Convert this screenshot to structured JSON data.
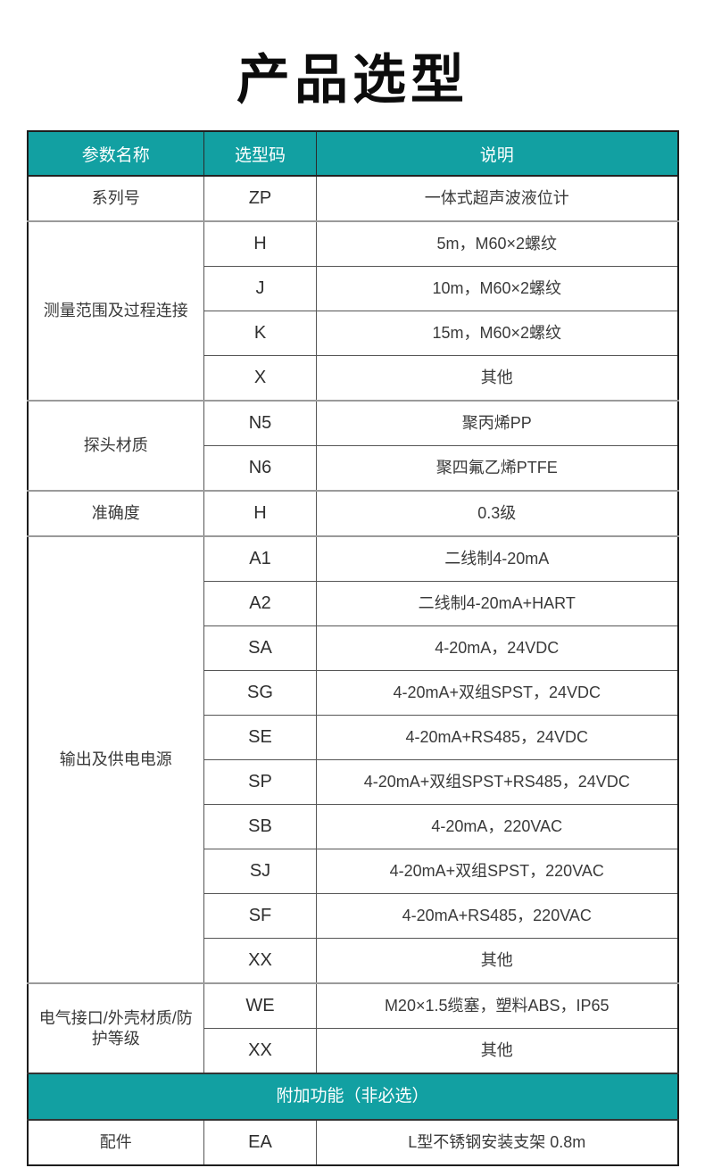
{
  "page": {
    "title": "产品选型"
  },
  "colors": {
    "accent_teal": "#12a0a2",
    "header_text": "#ffffff",
    "body_text": "#3a3a3a",
    "outer_border": "#1d1d1d"
  },
  "table": {
    "headers": [
      "参数名称",
      "选型码",
      "说明"
    ],
    "groups": [
      {
        "name": "系列号",
        "rows": [
          {
            "code": "ZP",
            "desc": "一体式超声波液位计"
          }
        ]
      },
      {
        "name": "测量范围及过程连接",
        "rows": [
          {
            "code": "H",
            "desc": "5m，M60×2螺纹"
          },
          {
            "code": "J",
            "desc": "10m，M60×2螺纹"
          },
          {
            "code": "K",
            "desc": "15m，M60×2螺纹"
          },
          {
            "code": "X",
            "desc": "其他"
          }
        ]
      },
      {
        "name": "探头材质",
        "rows": [
          {
            "code": "N5",
            "desc": "聚丙烯PP"
          },
          {
            "code": "N6",
            "desc": "聚四氟乙烯PTFE"
          }
        ]
      },
      {
        "name": "准确度",
        "rows": [
          {
            "code": "H",
            "desc": "0.3级"
          }
        ]
      },
      {
        "name": "输出及供电电源",
        "rows": [
          {
            "code": "A1",
            "desc": "二线制4-20mA"
          },
          {
            "code": "A2",
            "desc": "二线制4-20mA+HART"
          },
          {
            "code": "SA",
            "desc": "4-20mA，24VDC"
          },
          {
            "code": "SG",
            "desc": "4-20mA+双组SPST，24VDC"
          },
          {
            "code": "SE",
            "desc": "4-20mA+RS485，24VDC"
          },
          {
            "code": "SP",
            "desc": "4-20mA+双组SPST+RS485，24VDC"
          },
          {
            "code": "SB",
            "desc": "4-20mA，220VAC"
          },
          {
            "code": "SJ",
            "desc": "4-20mA+双组SPST，220VAC"
          },
          {
            "code": "SF",
            "desc": "4-20mA+RS485，220VAC"
          },
          {
            "code": "XX",
            "desc": "其他"
          }
        ]
      },
      {
        "name": "电气接口/外壳材质/防护等级",
        "rows": [
          {
            "code": "WE",
            "desc": "M20×1.5缆塞，塑料ABS，IP65"
          },
          {
            "code": "XX",
            "desc": "其他"
          }
        ]
      }
    ],
    "section_banner": "附加功能（非必选）",
    "extra_groups": [
      {
        "name": "配件",
        "rows": [
          {
            "code": "EA",
            "desc": "L型不锈钢安装支架 0.8m"
          }
        ]
      }
    ]
  }
}
